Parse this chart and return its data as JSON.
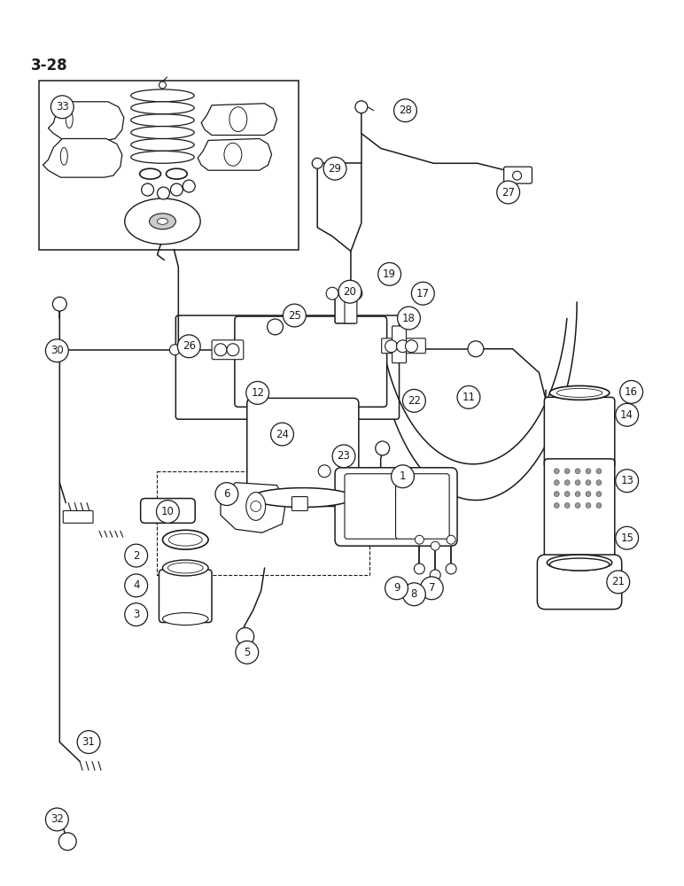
{
  "page_label": "3-28",
  "bg": "#ffffff",
  "lc": "#1a1a1a",
  "fs_label": 8.5,
  "fs_page": 12,
  "figsize": [
    7.72,
    10.0
  ],
  "dpi": 100,
  "labels": [
    [
      "1",
      455,
      538
    ],
    [
      "2",
      152,
      628
    ],
    [
      "3",
      152,
      695
    ],
    [
      "4",
      152,
      662
    ],
    [
      "5",
      278,
      738
    ],
    [
      "6",
      255,
      558
    ],
    [
      "7",
      488,
      665
    ],
    [
      "8",
      468,
      672
    ],
    [
      "9",
      448,
      665
    ],
    [
      "10",
      188,
      578
    ],
    [
      "11",
      530,
      448
    ],
    [
      "12",
      290,
      443
    ],
    [
      "13",
      710,
      543
    ],
    [
      "14",
      710,
      468
    ],
    [
      "15",
      710,
      608
    ],
    [
      "16",
      715,
      442
    ],
    [
      "17",
      478,
      330
    ],
    [
      "18",
      462,
      358
    ],
    [
      "19",
      440,
      308
    ],
    [
      "20",
      395,
      328
    ],
    [
      "21",
      700,
      658
    ],
    [
      "22",
      468,
      452
    ],
    [
      "23",
      388,
      515
    ],
    [
      "24",
      318,
      490
    ],
    [
      "25",
      332,
      355
    ],
    [
      "26",
      212,
      390
    ],
    [
      "27",
      575,
      215
    ],
    [
      "28",
      458,
      122
    ],
    [
      "29",
      378,
      188
    ],
    [
      "30",
      62,
      395
    ],
    [
      "31",
      98,
      840
    ],
    [
      "32",
      62,
      928
    ],
    [
      "33",
      68,
      118
    ]
  ]
}
